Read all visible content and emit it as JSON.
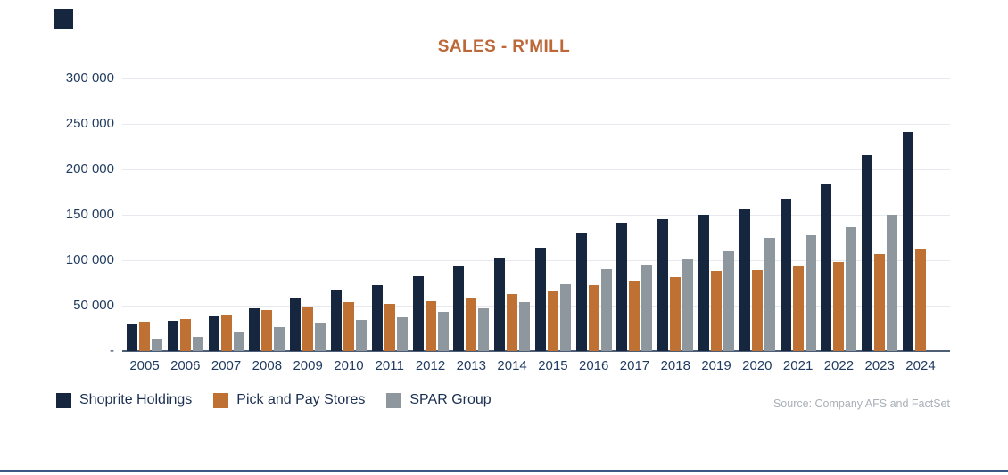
{
  "title": "SALES - R'MILL",
  "source": "Source: Company AFS and FactSet",
  "colors": {
    "shoprite": "#16263f",
    "pick_n_pay": "#bf7134",
    "spar": "#8e969e",
    "title_text": "#bc6838",
    "axis_text": "#1f3a5f",
    "legend_text": "#1b2f52",
    "gridline": "#e7e9ef",
    "baseline": "#4d5e76",
    "source_text": "#a9b0b7",
    "accent_line": "#3a5a85",
    "logo": "#16263f"
  },
  "legend": [
    {
      "label": "Shoprite Holdings",
      "color_key": "shoprite"
    },
    {
      "label": "Pick and Pay Stores",
      "color_key": "pick_n_pay"
    },
    {
      "label": "SPAR Group",
      "color_key": "spar"
    }
  ],
  "chart_data": {
    "type": "bar",
    "title": "SALES - R'MILL",
    "xlabel": "",
    "ylabel": "",
    "ylim": [
      0,
      300000
    ],
    "grid": true,
    "legend_position": "bottom-left",
    "y_ticks": [
      300000,
      250000,
      200000,
      150000,
      100000,
      50000,
      0
    ],
    "y_tick_labels": [
      "300 000",
      "250 000",
      "200 000",
      "150 000",
      "100 000",
      "50 000",
      "-"
    ],
    "categories": [
      "2005",
      "2006",
      "2007",
      "2008",
      "2009",
      "2010",
      "2011",
      "2012",
      "2013",
      "2014",
      "2015",
      "2016",
      "2017",
      "2018",
      "2019",
      "2020",
      "2021",
      "2022",
      "2023",
      "2024"
    ],
    "series": [
      {
        "name": "Shoprite Holdings",
        "color_key": "shoprite",
        "values": [
          29500,
          33500,
          38500,
          47500,
          59300,
          67400,
          72300,
          82700,
          92700,
          102200,
          113700,
          130000,
          141000,
          145300,
          150400,
          156900,
          168000,
          184100,
          215300,
          241400
        ]
      },
      {
        "name": "Pick and Pay Stores",
        "color_key": "pick_n_pay",
        "values": [
          32000,
          35000,
          40000,
          45500,
          49500,
          54000,
          52000,
          55300,
          59300,
          63100,
          66900,
          72400,
          77500,
          81600,
          88300,
          89200,
          93000,
          97900,
          106600,
          112300
        ]
      },
      {
        "name": "SPAR Group",
        "color_key": "spar",
        "values": [
          13500,
          16000,
          21000,
          26500,
          31500,
          34000,
          37000,
          43500,
          47400,
          53600,
          73500,
          90700,
          95500,
          101000,
          109500,
          124200,
          127900,
          136000,
          149600,
          null
        ]
      }
    ]
  }
}
